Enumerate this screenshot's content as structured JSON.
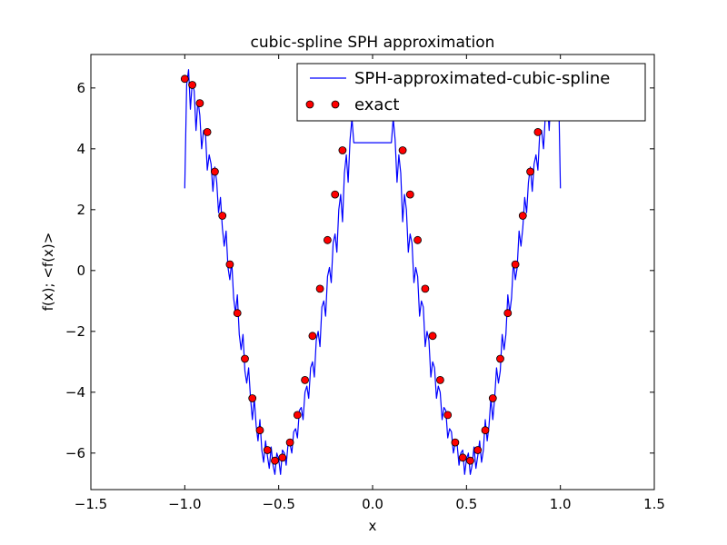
{
  "chart_data": {
    "type": "line",
    "title": "cubic-spline SPH approximation",
    "xlabel": "x",
    "ylabel": "f(x);  <f(x)>",
    "xlim": [
      -1.5,
      1.5
    ],
    "ylim": [
      -7.2,
      7.1
    ],
    "x_ticks": [
      -1.5,
      -1.0,
      -0.5,
      0.0,
      0.5,
      1.0,
      1.5
    ],
    "x_tick_labels": [
      "−1.5",
      "−1.0",
      "−0.5",
      "0.0",
      "0.5",
      "1.0",
      "1.5"
    ],
    "y_ticks": [
      -6,
      -4,
      -2,
      0,
      2,
      4,
      6
    ],
    "y_tick_labels": [
      "−6",
      "−4",
      "−2",
      "0",
      "2",
      "4",
      "6"
    ],
    "grid": false,
    "legend_position": "top-right",
    "series": [
      {
        "name": "SPH-approximated-cubic-spline",
        "kind": "line",
        "color": "#0000ff",
        "x": [
          -1.0,
          -0.99,
          -0.98,
          -0.97,
          -0.96,
          -0.95,
          -0.94,
          -0.93,
          -0.92,
          -0.91,
          -0.9,
          -0.89,
          -0.88,
          -0.87,
          -0.86,
          -0.85,
          -0.84,
          -0.83,
          -0.82,
          -0.81,
          -0.8,
          -0.79,
          -0.78,
          -0.77,
          -0.76,
          -0.75,
          -0.74,
          -0.73,
          -0.72,
          -0.71,
          -0.7,
          -0.69,
          -0.68,
          -0.67,
          -0.66,
          -0.65,
          -0.64,
          -0.63,
          -0.62,
          -0.61,
          -0.6,
          -0.59,
          -0.58,
          -0.57,
          -0.56,
          -0.55,
          -0.54,
          -0.53,
          -0.52,
          -0.51,
          -0.5,
          -0.49,
          -0.48,
          -0.47,
          -0.46,
          -0.45,
          -0.44,
          -0.43,
          -0.42,
          -0.41,
          -0.4,
          -0.39,
          -0.38,
          -0.37,
          -0.36,
          -0.35,
          -0.34,
          -0.33,
          -0.32,
          -0.31,
          -0.3,
          -0.29,
          -0.28,
          -0.27,
          -0.26,
          -0.25,
          -0.24,
          -0.23,
          -0.22,
          -0.21,
          -0.2,
          -0.19,
          -0.18,
          -0.17,
          -0.16,
          -0.15,
          -0.14,
          -0.13,
          -0.12,
          -0.11,
          -0.1,
          0.1,
          0.11,
          0.12,
          0.13,
          0.14,
          0.15,
          0.16,
          0.17,
          0.18,
          0.19,
          0.2,
          0.21,
          0.22,
          0.23,
          0.24,
          0.25,
          0.26,
          0.27,
          0.28,
          0.29,
          0.3,
          0.31,
          0.32,
          0.33,
          0.34,
          0.35,
          0.36,
          0.37,
          0.38,
          0.39,
          0.4,
          0.41,
          0.42,
          0.43,
          0.44,
          0.45,
          0.46,
          0.47,
          0.48,
          0.49,
          0.5,
          0.51,
          0.52,
          0.53,
          0.54,
          0.55,
          0.56,
          0.57,
          0.58,
          0.59,
          0.6,
          0.61,
          0.62,
          0.63,
          0.64,
          0.65,
          0.66,
          0.67,
          0.68,
          0.69,
          0.7,
          0.71,
          0.72,
          0.73,
          0.74,
          0.75,
          0.76,
          0.77,
          0.78,
          0.79,
          0.8,
          0.81,
          0.82,
          0.83,
          0.84,
          0.85,
          0.86,
          0.87,
          0.88,
          0.89,
          0.9,
          0.91,
          0.92,
          0.93,
          0.94,
          0.95,
          0.96,
          0.97,
          0.98,
          0.99,
          1.0
        ],
        "y": [
          2.7,
          6.1,
          6.6,
          5.3,
          6.2,
          5.9,
          4.6,
          5.6,
          5.1,
          4.0,
          4.6,
          4.5,
          3.3,
          3.8,
          3.5,
          2.6,
          3.4,
          2.9,
          1.9,
          2.4,
          1.4,
          0.8,
          1.3,
          0.1,
          -0.3,
          0.3,
          -0.9,
          -1.4,
          -0.8,
          -2.1,
          -2.6,
          -2.1,
          -3.3,
          -3.7,
          -3.2,
          -4.2,
          -4.9,
          -4.2,
          -5.1,
          -5.6,
          -4.9,
          -5.9,
          -6.3,
          -5.6,
          -6.1,
          -6.5,
          -5.8,
          -6.4,
          -6.7,
          -6.0,
          -6.2,
          -6.7,
          -5.9,
          -6.0,
          -6.4,
          -5.7,
          -5.7,
          -6.0,
          -5.3,
          -5.2,
          -5.5,
          -4.6,
          -4.5,
          -4.9,
          -4.0,
          -3.8,
          -4.2,
          -3.2,
          -3.0,
          -3.5,
          -2.3,
          -2.0,
          -2.5,
          -1.2,
          -1.0,
          -1.5,
          -0.2,
          0.1,
          -0.4,
          0.9,
          1.2,
          0.6,
          2.0,
          2.5,
          1.6,
          3.2,
          3.8,
          2.9,
          4.3,
          5.0,
          4.2,
          4.2,
          5.0,
          4.3,
          2.9,
          3.8,
          3.2,
          1.6,
          2.5,
          2.0,
          0.6,
          1.2,
          0.9,
          -0.4,
          0.1,
          -0.2,
          -1.5,
          -1.0,
          -1.2,
          -2.5,
          -2.0,
          -2.3,
          -3.5,
          -3.0,
          -3.2,
          -4.2,
          -3.8,
          -4.0,
          -4.9,
          -4.5,
          -4.6,
          -5.5,
          -5.2,
          -5.3,
          -6.0,
          -5.7,
          -5.7,
          -6.4,
          -6.0,
          -5.9,
          -6.7,
          -6.2,
          -6.0,
          -6.7,
          -6.4,
          -5.8,
          -6.5,
          -6.1,
          -5.6,
          -6.3,
          -5.9,
          -4.9,
          -5.6,
          -5.1,
          -4.2,
          -4.9,
          -4.2,
          -3.2,
          -3.7,
          -3.3,
          -2.1,
          -2.6,
          -2.1,
          -0.8,
          -1.4,
          -0.9,
          0.3,
          -0.3,
          0.1,
          1.3,
          0.8,
          1.4,
          2.4,
          1.9,
          2.9,
          3.4,
          2.6,
          3.5,
          3.8,
          3.3,
          4.5,
          4.6,
          4.0,
          5.1,
          5.6,
          4.6,
          5.9,
          6.2,
          5.3,
          6.6,
          6.1,
          2.7
        ]
      },
      {
        "name": "exact",
        "kind": "markers",
        "color": "#ff0000",
        "x": [
          -1.0,
          -0.96,
          -0.92,
          -0.88,
          -0.84,
          -0.8,
          -0.76,
          -0.72,
          -0.68,
          -0.64,
          -0.6,
          -0.56,
          -0.52,
          -0.48,
          -0.44,
          -0.4,
          -0.36,
          -0.32,
          -0.28,
          -0.24,
          -0.2,
          -0.16,
          0.16,
          0.2,
          0.24,
          0.28,
          0.32,
          0.36,
          0.4,
          0.44,
          0.48,
          0.52,
          0.56,
          0.6,
          0.64,
          0.68,
          0.72,
          0.76,
          0.8,
          0.84,
          0.88
        ],
        "y": [
          6.3,
          6.1,
          5.5,
          4.55,
          3.25,
          1.8,
          0.2,
          -1.4,
          -2.9,
          -4.2,
          -5.25,
          -5.9,
          -6.25,
          -6.15,
          -5.65,
          -4.75,
          -3.6,
          -2.15,
          -0.6,
          1.0,
          2.5,
          3.95,
          3.95,
          2.5,
          1.0,
          -0.6,
          -2.15,
          -3.6,
          -4.75,
          -5.65,
          -6.15,
          -6.25,
          -5.9,
          -5.25,
          -4.2,
          -2.9,
          -1.4,
          0.2,
          1.8,
          3.25,
          4.55
        ]
      }
    ]
  }
}
